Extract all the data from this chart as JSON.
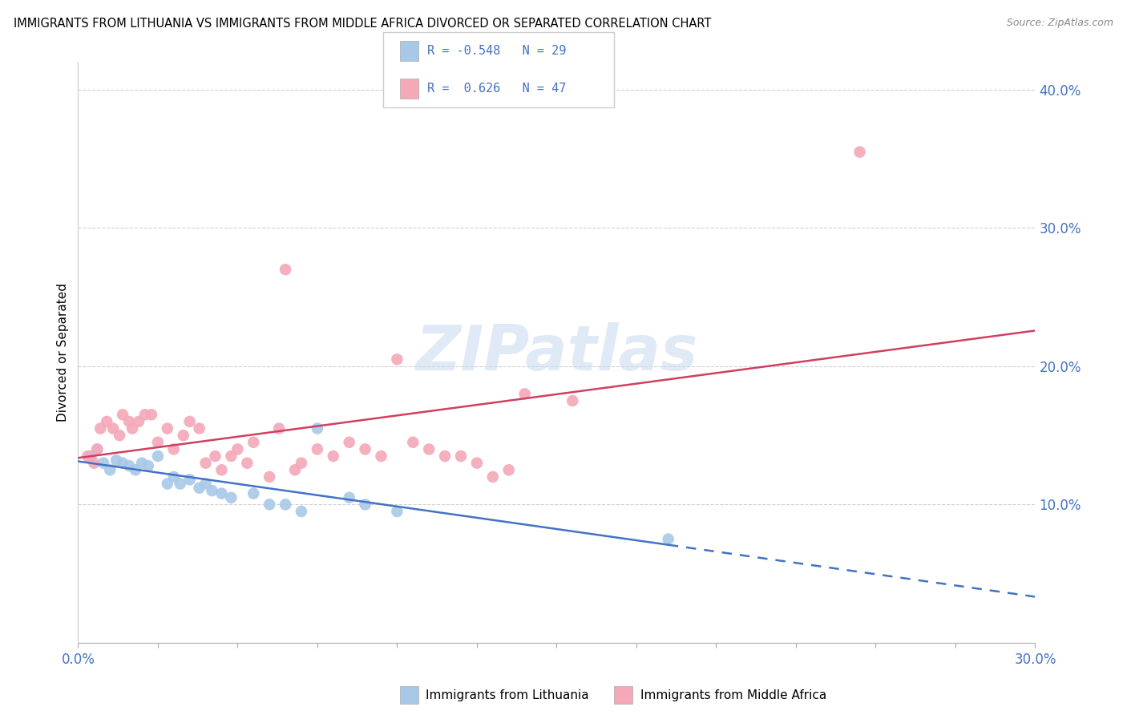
{
  "title": "IMMIGRANTS FROM LITHUANIA VS IMMIGRANTS FROM MIDDLE AFRICA DIVORCED OR SEPARATED CORRELATION CHART",
  "source": "Source: ZipAtlas.com",
  "ylabel": "Divorced or Separated",
  "xlabel_bottom_blue": "Immigrants from Lithuania",
  "xlabel_bottom_pink": "Immigrants from Middle Africa",
  "xlim": [
    0.0,
    0.3
  ],
  "ylim": [
    0.0,
    0.42
  ],
  "x_ticks": [
    0.0,
    0.025,
    0.05,
    0.075,
    0.1,
    0.125,
    0.15,
    0.175,
    0.2,
    0.225,
    0.25,
    0.275,
    0.3
  ],
  "x_label_ticks": [
    0.0,
    0.3
  ],
  "y_ticks_right": [
    0.1,
    0.2,
    0.3,
    0.4
  ],
  "watermark": "ZIPatlas",
  "legend_blue_R": "-0.548",
  "legend_blue_N": "29",
  "legend_pink_R": "0.626",
  "legend_pink_N": "47",
  "blue_color": "#a8c8e8",
  "pink_color": "#f4a8b8",
  "blue_line_color": "#4472c4",
  "pink_line_color": "#d04060",
  "blue_scatter": [
    [
      0.004,
      0.135
    ],
    [
      0.006,
      0.14
    ],
    [
      0.008,
      0.13
    ],
    [
      0.01,
      0.125
    ],
    [
      0.012,
      0.132
    ],
    [
      0.014,
      0.13
    ],
    [
      0.016,
      0.128
    ],
    [
      0.018,
      0.125
    ],
    [
      0.02,
      0.13
    ],
    [
      0.022,
      0.128
    ],
    [
      0.025,
      0.135
    ],
    [
      0.028,
      0.115
    ],
    [
      0.03,
      0.12
    ],
    [
      0.032,
      0.115
    ],
    [
      0.035,
      0.118
    ],
    [
      0.038,
      0.112
    ],
    [
      0.04,
      0.115
    ],
    [
      0.042,
      0.11
    ],
    [
      0.045,
      0.108
    ],
    [
      0.048,
      0.105
    ],
    [
      0.055,
      0.108
    ],
    [
      0.06,
      0.1
    ],
    [
      0.065,
      0.1
    ],
    [
      0.07,
      0.095
    ],
    [
      0.075,
      0.155
    ],
    [
      0.085,
      0.105
    ],
    [
      0.09,
      0.1
    ],
    [
      0.1,
      0.095
    ],
    [
      0.185,
      0.075
    ]
  ],
  "pink_scatter": [
    [
      0.003,
      0.135
    ],
    [
      0.005,
      0.13
    ],
    [
      0.006,
      0.14
    ],
    [
      0.007,
      0.155
    ],
    [
      0.009,
      0.16
    ],
    [
      0.011,
      0.155
    ],
    [
      0.013,
      0.15
    ],
    [
      0.014,
      0.165
    ],
    [
      0.016,
      0.16
    ],
    [
      0.017,
      0.155
    ],
    [
      0.019,
      0.16
    ],
    [
      0.021,
      0.165
    ],
    [
      0.023,
      0.165
    ],
    [
      0.025,
      0.145
    ],
    [
      0.028,
      0.155
    ],
    [
      0.03,
      0.14
    ],
    [
      0.033,
      0.15
    ],
    [
      0.035,
      0.16
    ],
    [
      0.038,
      0.155
    ],
    [
      0.04,
      0.13
    ],
    [
      0.043,
      0.135
    ],
    [
      0.045,
      0.125
    ],
    [
      0.048,
      0.135
    ],
    [
      0.05,
      0.14
    ],
    [
      0.053,
      0.13
    ],
    [
      0.055,
      0.145
    ],
    [
      0.06,
      0.12
    ],
    [
      0.063,
      0.155
    ],
    [
      0.065,
      0.27
    ],
    [
      0.068,
      0.125
    ],
    [
      0.07,
      0.13
    ],
    [
      0.075,
      0.14
    ],
    [
      0.08,
      0.135
    ],
    [
      0.085,
      0.145
    ],
    [
      0.09,
      0.14
    ],
    [
      0.095,
      0.135
    ],
    [
      0.1,
      0.205
    ],
    [
      0.105,
      0.145
    ],
    [
      0.11,
      0.14
    ],
    [
      0.115,
      0.135
    ],
    [
      0.12,
      0.135
    ],
    [
      0.125,
      0.13
    ],
    [
      0.13,
      0.12
    ],
    [
      0.135,
      0.125
    ],
    [
      0.14,
      0.18
    ],
    [
      0.155,
      0.175
    ],
    [
      0.245,
      0.355
    ]
  ]
}
